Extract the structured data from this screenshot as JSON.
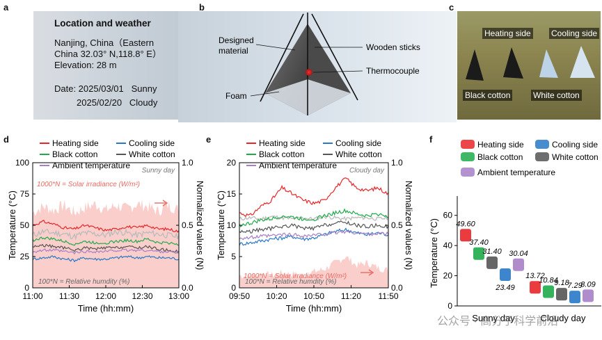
{
  "panel_labels": {
    "a": "a",
    "b": "b",
    "c": "c",
    "d": "d",
    "e": "e",
    "f": "f"
  },
  "panel_a": {
    "title": "Location and weather",
    "location_line1": "Nanjing, China（Eastern",
    "location_line2": "China 32.03° N,118.8° E）",
    "elevation": "Elevation: 28 m",
    "date1": "Date: 2025/03/01   Sunny",
    "date2": "2025/02/20   Cloudy"
  },
  "panel_b": {
    "designed_material": "Designed",
    "designed_material2": "material",
    "wooden_sticks": "Wooden sticks",
    "thermocouple": "Thermocouple",
    "foam": "Foam"
  },
  "panel_c": {
    "heating_side": "Heating side",
    "cooling_side": "Cooling side",
    "black_cotton": "Black cotton",
    "white_cotton": "White cotton"
  },
  "colors": {
    "heating": "#e8262a",
    "cooling": "#2878c8",
    "black": "#1faa4a",
    "white": "#555555",
    "ambient": "#a77fc7",
    "solar": "#f4a6a0",
    "humidity": "#bbbbbb"
  },
  "chart_data": [
    {
      "type": "line",
      "panel": "d",
      "title": "",
      "xlabel": "Time (hh:mm)",
      "ylabel": "Temperature (°C)",
      "y2label": "Normalized values (N)",
      "xticks": [
        "11:00",
        "11:30",
        "12:00",
        "12:30",
        "13:00"
      ],
      "ylim": [
        0,
        100
      ],
      "yticks": [
        "0",
        "25",
        "50",
        "75",
        "100"
      ],
      "y2lim": [
        0,
        1
      ],
      "y2ticks": [
        "0.0",
        "0.5",
        "1.0"
      ],
      "annotation_day": "Sunny day",
      "annotation_solar": "1000*N = Solar irradiance (W/m²)",
      "annotation_humidity": "100*N = Relative humdity (%)",
      "legend": [
        "Heating side",
        "Cooling side",
        "Black cotton",
        "White cotton",
        "Ambient temperature"
      ],
      "series": [
        {
          "name": "Heating side",
          "values": [
            50,
            53,
            51,
            48,
            47,
            50,
            48,
            46,
            47,
            49,
            48,
            50,
            47,
            47,
            45
          ]
        },
        {
          "name": "Cooling side",
          "values": [
            23,
            24,
            25,
            23,
            22,
            24,
            23,
            23,
            24,
            25,
            24,
            25,
            24,
            24,
            23
          ]
        },
        {
          "name": "Black cotton",
          "values": [
            38,
            40,
            39,
            37,
            35,
            37,
            36,
            36,
            37,
            38,
            37,
            39,
            36,
            36,
            35
          ]
        },
        {
          "name": "White cotton",
          "values": [
            33,
            34,
            33,
            32,
            30,
            32,
            31,
            32,
            32,
            33,
            32,
            33,
            31,
            30,
            29
          ]
        },
        {
          "name": "Ambient temperature",
          "values": [
            29,
            30,
            30,
            29,
            28,
            29,
            29,
            29,
            30,
            30,
            30,
            30,
            29,
            29,
            28
          ]
        }
      ],
      "solar_N": [
        0.6,
        0.65,
        0.62,
        0.66,
        0.6,
        0.64,
        0.67,
        0.62,
        0.66,
        0.63,
        0.67,
        0.65,
        0.61,
        0.66,
        0.62
      ],
      "humidity_N": [
        0.42,
        0.45,
        0.44,
        0.43,
        0.41,
        0.44,
        0.43,
        0.42,
        0.45,
        0.44,
        0.42,
        0.44,
        0.43,
        0.42,
        0.41
      ]
    },
    {
      "type": "line",
      "panel": "e",
      "title": "",
      "xlabel": "Time (hh:mm)",
      "ylabel": "Temperature (°C)",
      "y2label": "Normalized values (N)",
      "xticks": [
        "09:50",
        "10:20",
        "10:50",
        "11:20",
        "11:50"
      ],
      "ylim": [
        0,
        20
      ],
      "yticks": [
        "0",
        "5",
        "10",
        "15",
        "20"
      ],
      "y2lim": [
        0,
        1
      ],
      "y2ticks": [
        "0.0",
        "0.5",
        "1.0"
      ],
      "annotation_day": "Cloudy day",
      "annotation_solar": "1000*N = Solar irradiance (W/m²)",
      "annotation_humidity": "100*N = Relative humdity (%)",
      "legend": [
        "Heating side",
        "Cooling side",
        "Black cotton",
        "White cotton",
        "Ambient temperature"
      ],
      "series": [
        {
          "name": "Heating side",
          "values": [
            12,
            11.5,
            13,
            14,
            16,
            15,
            14,
            13.5,
            14,
            16,
            17.5,
            16,
            15.5,
            16,
            15
          ]
        },
        {
          "name": "Cooling side",
          "values": [
            7,
            7.2,
            7.5,
            7.8,
            8,
            8.2,
            7.8,
            8,
            8.5,
            9,
            9.3,
            8.8,
            8.5,
            8.8,
            8.5
          ]
        },
        {
          "name": "Black cotton",
          "values": [
            10,
            10.3,
            10.8,
            11,
            11.5,
            11.3,
            11,
            11,
            11.5,
            12,
            12.3,
            11.8,
            11.5,
            11.8,
            11.5
          ]
        },
        {
          "name": "White cotton",
          "values": [
            9,
            9,
            9.3,
            9.5,
            9.8,
            10,
            9.5,
            9.5,
            10,
            10.3,
            10.5,
            10,
            9.8,
            10,
            9.8
          ]
        },
        {
          "name": "Ambient temperature",
          "values": [
            8,
            8,
            8.2,
            8.3,
            8.5,
            8.5,
            8.3,
            8.4,
            8.6,
            8.8,
            9,
            8.8,
            8.6,
            8.7,
            8.6
          ]
        }
      ],
      "solar_N": [
        0.1,
        0.09,
        0.11,
        0.1,
        0.12,
        0.11,
        0.1,
        0.13,
        0.15,
        0.2,
        0.25,
        0.18,
        0.2,
        0.16,
        0.14
      ],
      "humidity_N": [
        0.55,
        0.56,
        0.55,
        0.57,
        0.56,
        0.55,
        0.56,
        0.55,
        0.57,
        0.56,
        0.55,
        0.56,
        0.56,
        0.55,
        0.56
      ]
    },
    {
      "type": "bar",
      "panel": "f",
      "title": "",
      "ylabel": "Temperature (°C)",
      "ylim": [
        0,
        70
      ],
      "yticks": [
        "0",
        "20",
        "40",
        "60"
      ],
      "categories": [
        "Sunny day",
        "Cloudy day"
      ],
      "legend": [
        "Heating side",
        "Cooling side",
        "Black cotton",
        "White cotton",
        "Ambient temperature"
      ],
      "series": [
        {
          "name": "Heating side",
          "values": [
            49.6,
            13.72
          ],
          "labels": [
            "49.60",
            "13.72"
          ]
        },
        {
          "name": "Black cotton",
          "values": [
            37.4,
            10.84
          ],
          "labels": [
            "37.40",
            "10.84"
          ]
        },
        {
          "name": "White cotton",
          "values": [
            31.4,
            9.18
          ],
          "labels": [
            "31.40",
            "9.18"
          ]
        },
        {
          "name": "Cooling side",
          "values": [
            23.49,
            7.29
          ],
          "labels": [
            "23.49",
            "7.29"
          ]
        },
        {
          "name": "Ambient temperature",
          "values": [
            30.04,
            8.09
          ],
          "labels": [
            "30.04",
            "8.09"
          ]
        }
      ]
    }
  ],
  "watermark": "公众号 · 高分子科学前沿"
}
